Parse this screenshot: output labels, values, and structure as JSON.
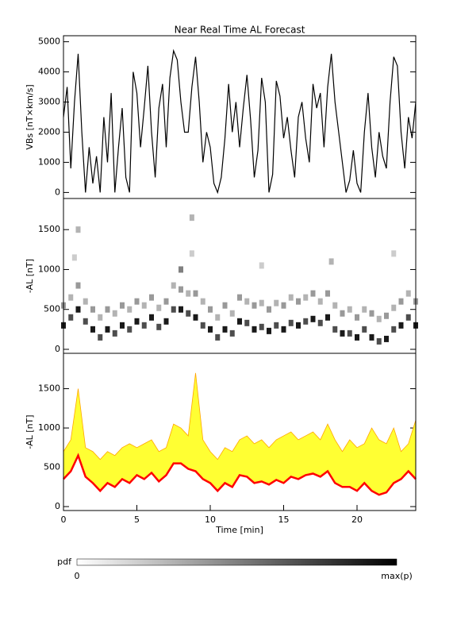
{
  "chart_data": [
    {
      "type": "line",
      "title": "Near Real Time AL Forecast",
      "ylabel": "VBs [nT×km/s]",
      "xlim": [
        0,
        24
      ],
      "ylim": [
        -200,
        5200
      ],
      "yticks": [
        0,
        1000,
        2000,
        3000,
        4000,
        5000
      ],
      "color": "#000000",
      "x": [
        0,
        0.25,
        0.5,
        0.75,
        1,
        1.25,
        1.5,
        1.75,
        2,
        2.25,
        2.5,
        2.75,
        3,
        3.25,
        3.5,
        3.75,
        4,
        4.25,
        4.5,
        4.75,
        5,
        5.25,
        5.5,
        5.75,
        6,
        6.25,
        6.5,
        6.75,
        7,
        7.25,
        7.5,
        7.75,
        8,
        8.25,
        8.5,
        8.75,
        9,
        9.25,
        9.5,
        9.75,
        10,
        10.25,
        10.5,
        10.75,
        11,
        11.25,
        11.5,
        11.75,
        12,
        12.25,
        12.5,
        12.75,
        13,
        13.25,
        13.5,
        13.75,
        14,
        14.25,
        14.5,
        14.75,
        15,
        15.25,
        15.5,
        15.75,
        16,
        16.25,
        16.5,
        16.75,
        17,
        17.25,
        17.5,
        17.75,
        18,
        18.25,
        18.5,
        18.75,
        19,
        19.25,
        19.5,
        19.75,
        20,
        20.25,
        20.5,
        20.75,
        21,
        21.25,
        21.5,
        21.75,
        22,
        22.25,
        22.5,
        22.75,
        23,
        23.25,
        23.5,
        23.75,
        24
      ],
      "values": [
        2500,
        3500,
        800,
        3000,
        4600,
        2000,
        0,
        1500,
        300,
        1200,
        0,
        2500,
        1000,
        3300,
        0,
        1500,
        2800,
        500,
        0,
        4000,
        3300,
        1500,
        2800,
        4200,
        2000,
        500,
        2800,
        3600,
        1500,
        3800,
        4700,
        4400,
        3000,
        2000,
        2000,
        3500,
        4500,
        3000,
        1000,
        2000,
        1500,
        300,
        0,
        500,
        1800,
        3600,
        2000,
        3000,
        1500,
        2800,
        3900,
        2400,
        500,
        1400,
        3800,
        3000,
        0,
        600,
        3700,
        3200,
        1800,
        2500,
        1400,
        500,
        2500,
        3000,
        1800,
        1000,
        3600,
        2800,
        3300,
        1500,
        3500,
        4600,
        3000,
        2000,
        1000,
        0,
        400,
        1400,
        300,
        0,
        2000,
        3300,
        1500,
        500,
        2000,
        1200,
        800,
        3000,
        4500,
        4200,
        2000,
        800,
        2500,
        1800,
        3000
      ]
    },
    {
      "type": "scatter",
      "ylabel": "-AL [nT]",
      "xlim": [
        0,
        24
      ],
      "ylim": [
        -50,
        1890
      ],
      "yticks": [
        0,
        500,
        1000,
        1500
      ],
      "x": [
        0,
        0.5,
        1,
        1.5,
        2,
        2.5,
        3,
        3.5,
        4,
        4.5,
        5,
        5.5,
        6,
        6.5,
        7,
        7.5,
        8,
        8.5,
        9,
        9.5,
        10,
        10.5,
        11,
        11.5,
        12,
        12.5,
        13,
        13.5,
        14,
        14.5,
        15,
        15.5,
        16,
        16.5,
        17,
        17.5,
        18,
        18.5,
        19,
        19.5,
        20,
        20.5,
        21,
        21.5,
        22,
        22.5,
        23,
        23.5,
        24,
        0,
        0.5,
        1,
        1.5,
        2,
        2.5,
        3,
        3.5,
        4,
        4.5,
        5,
        5.5,
        6,
        6.5,
        7,
        7.5,
        8,
        8.5,
        9,
        9.5,
        10,
        10.5,
        11,
        11.5,
        12,
        12.5,
        13,
        13.5,
        14,
        14.5,
        15,
        15.5,
        16,
        16.5,
        17,
        17.5,
        18,
        18.5,
        19,
        19.5,
        20,
        20.5,
        21,
        21.5,
        22,
        22.5,
        23,
        23.5,
        24,
        0.75,
        1,
        8,
        8.75,
        8.75,
        13.5,
        18.25,
        22.5
      ],
      "y": [
        300,
        400,
        500,
        350,
        250,
        150,
        250,
        200,
        300,
        250,
        350,
        300,
        400,
        280,
        350,
        500,
        500,
        450,
        400,
        300,
        250,
        150,
        250,
        200,
        350,
        330,
        250,
        280,
        230,
        300,
        250,
        330,
        300,
        350,
        380,
        330,
        400,
        250,
        200,
        200,
        150,
        250,
        150,
        100,
        130,
        250,
        300,
        400,
        300,
        550,
        650,
        800,
        600,
        500,
        400,
        500,
        450,
        550,
        500,
        600,
        550,
        650,
        520,
        600,
        800,
        750,
        700,
        700,
        600,
        500,
        400,
        550,
        450,
        650,
        600,
        550,
        580,
        500,
        580,
        550,
        650,
        600,
        650,
        700,
        600,
        700,
        550,
        450,
        500,
        400,
        500,
        450,
        380,
        420,
        520,
        600,
        700,
        600,
        1150,
        1500,
        1000,
        1650,
        1200,
        1050,
        1100,
        1200
      ],
      "p": [
        0.9,
        0.7,
        0.9,
        0.7,
        0.9,
        0.7,
        0.9,
        0.7,
        0.9,
        0.7,
        0.9,
        0.7,
        0.9,
        0.7,
        0.9,
        0.7,
        0.9,
        0.7,
        0.9,
        0.7,
        0.9,
        0.7,
        0.9,
        0.7,
        0.9,
        0.7,
        0.9,
        0.7,
        0.9,
        0.7,
        0.9,
        0.7,
        0.9,
        0.7,
        0.9,
        0.7,
        0.9,
        0.7,
        0.9,
        0.7,
        0.9,
        0.7,
        0.9,
        0.7,
        0.9,
        0.7,
        0.9,
        0.7,
        0.9,
        0.4,
        0.3,
        0.4,
        0.3,
        0.4,
        0.3,
        0.4,
        0.3,
        0.4,
        0.3,
        0.4,
        0.3,
        0.4,
        0.3,
        0.4,
        0.3,
        0.4,
        0.3,
        0.4,
        0.3,
        0.4,
        0.3,
        0.4,
        0.3,
        0.4,
        0.3,
        0.4,
        0.3,
        0.4,
        0.3,
        0.4,
        0.3,
        0.4,
        0.3,
        0.4,
        0.3,
        0.4,
        0.3,
        0.4,
        0.3,
        0.4,
        0.3,
        0.4,
        0.3,
        0.4,
        0.3,
        0.4,
        0.3,
        0.4,
        0.2,
        0.3,
        0.5,
        0.3,
        0.2,
        0.2,
        0.3,
        0.2
      ]
    },
    {
      "type": "band",
      "ylabel": "-AL [nT]",
      "xlabel": "Time [min]",
      "xlim": [
        0,
        24
      ],
      "ylim": [
        -50,
        1950
      ],
      "xticks": [
        0,
        5,
        10,
        15,
        20
      ],
      "yticks": [
        0,
        500,
        1000,
        1500
      ],
      "x": [
        0,
        0.5,
        1,
        1.5,
        2,
        2.5,
        3,
        3.5,
        4,
        4.5,
        5,
        5.5,
        6,
        6.5,
        7,
        7.5,
        8,
        8.5,
        9,
        9.5,
        10,
        10.5,
        11,
        11.5,
        12,
        12.5,
        13,
        13.5,
        14,
        14.5,
        15,
        15.5,
        16,
        16.5,
        17,
        17.5,
        18,
        18.5,
        19,
        19.5,
        20,
        20.5,
        21,
        21.5,
        22,
        22.5,
        23,
        23.5,
        24
      ],
      "band": {
        "color": "#ffff33",
        "edge_color": "#ffa500",
        "high": [
          700,
          850,
          1500,
          750,
          700,
          600,
          700,
          650,
          750,
          800,
          750,
          800,
          850,
          700,
          750,
          1050,
          1000,
          900,
          1700,
          850,
          700,
          600,
          750,
          700,
          850,
          900,
          800,
          850,
          750,
          850,
          900,
          950,
          850,
          900,
          950,
          850,
          1050,
          850,
          700,
          850,
          750,
          800,
          1000,
          850,
          800,
          1000,
          700,
          800,
          1100
        ]
      },
      "line": {
        "color": "#ff0000",
        "values": [
          350,
          450,
          650,
          380,
          300,
          200,
          300,
          250,
          350,
          300,
          400,
          350,
          430,
          320,
          400,
          550,
          550,
          480,
          450,
          350,
          300,
          200,
          300,
          250,
          400,
          380,
          300,
          320,
          280,
          340,
          300,
          380,
          350,
          400,
          420,
          380,
          450,
          300,
          250,
          250,
          200,
          300,
          200,
          150,
          180,
          300,
          350,
          450,
          350
        ]
      }
    },
    {
      "type": "colorbar",
      "label": "pdf",
      "min_label": "0",
      "max_label": "max(p)"
    }
  ]
}
